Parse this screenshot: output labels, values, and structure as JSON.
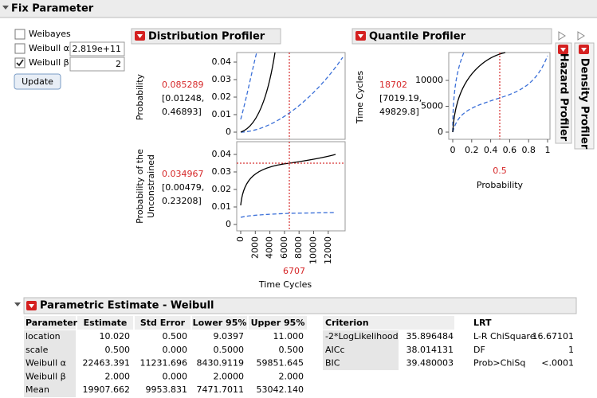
{
  "header": {
    "title": "Fix Parameter"
  },
  "controls": {
    "weibayes": "Weibayes",
    "alpha_label": "Weibull α",
    "alpha_value": "2.819e+11",
    "beta_label": "Weibull β",
    "beta_value": "2",
    "button": "Update"
  },
  "distribution_profiler": {
    "title": "Distribution Profiler",
    "x_label": "Time Cycles",
    "x_value": "6707",
    "x_ticks": [
      0,
      2000,
      4000,
      6000,
      8000,
      10000,
      12000
    ],
    "panels": [
      {
        "y_label": [
          "Probability"
        ],
        "value": "0.085289",
        "ci": [
          "[0.01248,",
          "0.46893]"
        ],
        "y_ticks": [
          0.04,
          0.03,
          0.02,
          0.01,
          0
        ]
      },
      {
        "y_label": [
          "Probability of the",
          "Unconstrained"
        ],
        "value": "0.034967",
        "ci": [
          "[0.00479,",
          "0.23208]"
        ],
        "y_ticks": [
          0.04,
          0.03,
          0.02,
          0.01,
          0
        ]
      }
    ]
  },
  "quantile_profiler": {
    "title": "Quantile Profiler",
    "x_label": "Probability",
    "x_value": "0.5",
    "y_label": "Time Cycles",
    "value": "18702",
    "ci": [
      "[7019.19,",
      "49829.8]"
    ],
    "y_ticks": [
      10000,
      5000,
      0
    ],
    "x_ticks": [
      0,
      0.2,
      0.4,
      0.6,
      0.8,
      1
    ]
  },
  "hazard_profiler": {
    "title": "Hazard Profiler"
  },
  "density_profiler": {
    "title": "Density Profiler"
  },
  "parametric_estimate": {
    "title": "Parametric Estimate - Weibull",
    "estimates": {
      "columns": [
        "Parameter",
        "Estimate",
        "Std Error",
        "Lower 95%",
        "Upper 95%"
      ],
      "rows": [
        [
          "location",
          "10.020",
          "0.500",
          "9.0397",
          "11.000"
        ],
        [
          "scale",
          "0.500",
          "0.000",
          "0.5000",
          "0.500"
        ],
        [
          "Weibull α",
          "22463.391",
          "11231.696",
          "8430.9119",
          "59851.645"
        ],
        [
          "Weibull β",
          "2.000",
          "0.000",
          "2.0000",
          "2.000"
        ],
        [
          "Mean",
          "19907.662",
          "9953.831",
          "7471.7011",
          "53042.140"
        ]
      ]
    },
    "criteria": {
      "column": "Criterion",
      "rows": [
        [
          "-2*LogLikelihood",
          "35.896484"
        ],
        [
          "AICc",
          "38.014131"
        ],
        [
          "BIC",
          "39.480003"
        ]
      ]
    },
    "lrt": {
      "title": "LRT",
      "rows": [
        [
          "L-R ChiSquare",
          "16.67101"
        ],
        [
          "DF",
          "1"
        ],
        [
          "Prob>ChiSq",
          "<.0001"
        ]
      ]
    }
  }
}
